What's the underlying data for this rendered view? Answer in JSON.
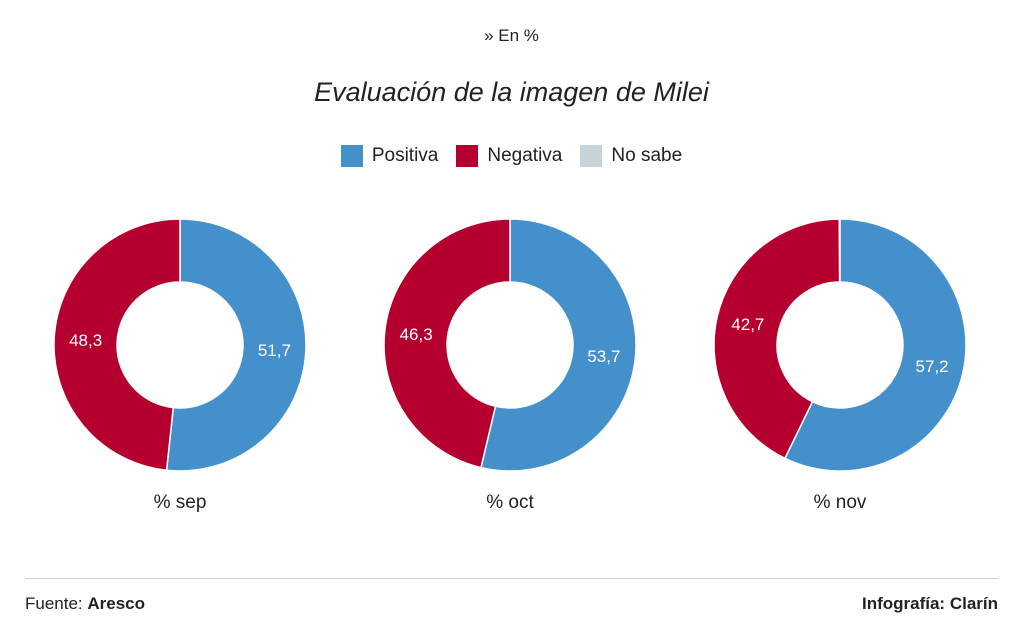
{
  "header": {
    "subtitle": "» En %",
    "title": "Evaluación de la imagen de Milei"
  },
  "legend": [
    {
      "label": "Positiva",
      "color": "#4490cb"
    },
    {
      "label": "Negativa",
      "color": "#b5002f"
    },
    {
      "label": "No sabe",
      "color": "#c8d2d9"
    }
  ],
  "chart_data": {
    "type": "pie",
    "variant": "donut",
    "series_names": [
      "Positiva",
      "Negativa",
      "No sabe"
    ],
    "colors": [
      "#4490cb",
      "#b5002f",
      "#c8d2d9"
    ],
    "charts": [
      {
        "label": "% sep",
        "values": [
          51.7,
          48.3,
          0
        ],
        "labels": [
          "51,7",
          "48,3",
          ""
        ]
      },
      {
        "label": "% oct",
        "values": [
          53.7,
          46.3,
          0
        ],
        "labels": [
          "53,7",
          "46,3",
          ""
        ]
      },
      {
        "label": "% nov",
        "values": [
          57.2,
          42.7,
          0
        ],
        "labels": [
          "57,2",
          "42,7",
          ""
        ]
      }
    ]
  },
  "footer": {
    "source_prefix": "Fuente: ",
    "source_name": "Aresco",
    "credit": "Infografía: Clarín"
  }
}
